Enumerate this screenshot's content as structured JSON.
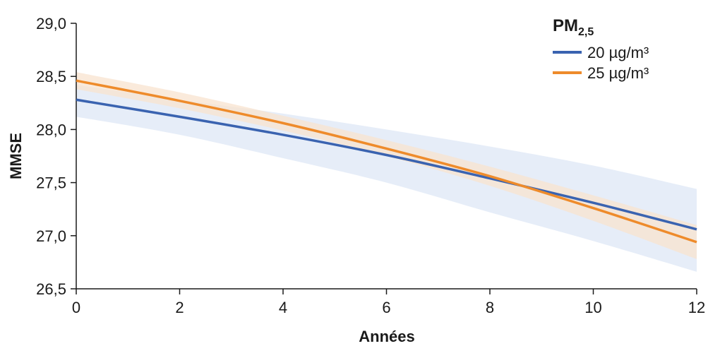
{
  "chart_data": {
    "type": "line",
    "xlabel": "Années",
    "ylabel": "MMSE",
    "xlim": [
      0,
      12
    ],
    "ylim": [
      26.5,
      29.0
    ],
    "x_ticks": [
      0,
      2,
      4,
      6,
      8,
      10,
      12
    ],
    "x_tick_labels": [
      "0",
      "2",
      "4",
      "6",
      "8",
      "10",
      "12"
    ],
    "y_ticks": [
      26.5,
      27.0,
      27.5,
      28.0,
      28.5,
      29.0
    ],
    "y_tick_labels": [
      "26,5",
      "27,0",
      "27,5",
      "28,0",
      "28,5",
      "29,0"
    ],
    "grid": false,
    "legend": {
      "position": "top-right",
      "title": "PM",
      "title_subscript": "2,5"
    },
    "x": [
      0,
      2,
      4,
      6,
      8,
      10,
      12
    ],
    "series": [
      {
        "name": "20 µg/m³",
        "color": "#3a63b0",
        "band_color": "#dde7f5",
        "values": [
          28.28,
          28.12,
          27.95,
          27.76,
          27.54,
          27.31,
          27.06
        ],
        "lower": [
          28.12,
          27.95,
          27.73,
          27.5,
          27.22,
          26.95,
          26.66
        ],
        "upper": [
          28.42,
          28.28,
          28.15,
          28.0,
          27.84,
          27.66,
          27.44
        ]
      },
      {
        "name": "25 µg/m³",
        "color": "#ee8b2b",
        "band_color": "#f8e3cf",
        "values": [
          28.46,
          28.27,
          28.06,
          27.82,
          27.56,
          27.26,
          26.94
        ],
        "lower": [
          28.38,
          28.2,
          27.99,
          27.75,
          27.47,
          27.14,
          26.78
        ],
        "upper": [
          28.54,
          28.35,
          28.13,
          27.9,
          27.65,
          27.38,
          27.1
        ]
      }
    ]
  }
}
